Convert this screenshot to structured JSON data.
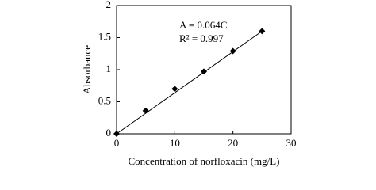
{
  "chart_data": {
    "type": "scatter",
    "x_label": "Concentration of norfloxacin (mg/L)",
    "y_label": "Absorbance",
    "annotations": [
      "A = 0.064C",
      "R² = 0.997"
    ],
    "x": [
      0,
      5,
      10,
      15,
      20,
      25
    ],
    "series": [
      {
        "name": "Absorbance",
        "color": "#000000",
        "values": [
          0,
          0.36,
          0.7,
          0.97,
          1.29,
          1.6
        ]
      }
    ],
    "fit": {
      "slope": 0.064,
      "color": "#000000"
    },
    "xlim": [
      0,
      30
    ],
    "xticks": [
      0,
      10,
      20,
      30
    ],
    "ylim": [
      0,
      2
    ],
    "yticks": [
      0,
      0.5,
      1,
      1.5,
      2
    ]
  }
}
